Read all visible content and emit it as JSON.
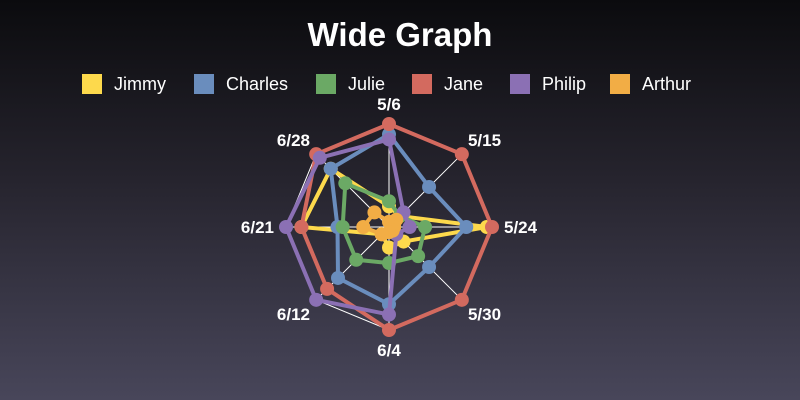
{
  "chart_data": {
    "type": "radar",
    "title": "Wide Graph",
    "categories": [
      "5/6",
      "5/15",
      "5/24",
      "5/30",
      "6/4",
      "6/12",
      "6/21",
      "6/28"
    ],
    "rmax": 100,
    "grid": true,
    "legend_position": "top",
    "series": [
      {
        "name": "Jimmy",
        "color": "#fdd94c",
        "values": [
          20,
          15,
          95,
          20,
          20,
          10,
          85,
          80
        ]
      },
      {
        "name": "Charles",
        "color": "#6a8dbd",
        "values": [
          90,
          55,
          75,
          55,
          75,
          70,
          50,
          80
        ]
      },
      {
        "name": "Julie",
        "color": "#6ba965",
        "values": [
          25,
          15,
          35,
          40,
          35,
          45,
          45,
          60
        ]
      },
      {
        "name": "Jane",
        "color": "#d36a5f",
        "values": [
          100,
          100,
          100,
          100,
          100,
          85,
          85,
          100
        ]
      },
      {
        "name": "Philip",
        "color": "#8b70b4",
        "values": [
          85,
          20,
          20,
          10,
          85,
          100,
          100,
          95
        ]
      },
      {
        "name": "Arthur",
        "color": "#f2ad45",
        "values": [
          5,
          10,
          5,
          5,
          5,
          10,
          25,
          20
        ]
      }
    ]
  }
}
